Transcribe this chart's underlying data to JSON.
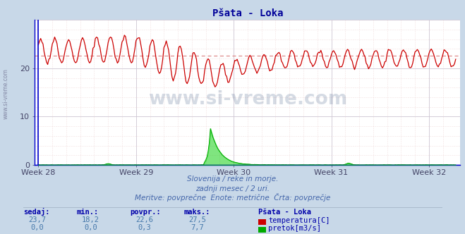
{
  "title": "Pšata - Loka",
  "title_color": "#000099",
  "bg_color": "#c8d8e8",
  "plot_bg_color": "#ffffff",
  "grid_color": "#c8c8d8",
  "grid_color2": "#e8c8c8",
  "temp_color": "#cc0000",
  "flow_color": "#00aa00",
  "flow_fill_color": "#00cc00",
  "avg_line_color": "#dd8888",
  "x_tick_labels": [
    "Week 28",
    "Week 29",
    "Week 30",
    "Week 31",
    "Week 32"
  ],
  "x_tick_positions": [
    0,
    84,
    168,
    252,
    336
  ],
  "ylim": [
    0,
    30
  ],
  "xlim": [
    -3,
    363
  ],
  "y_ticks": [
    0,
    10,
    20
  ],
  "subtitle1": "Slovenija / reke in morje.",
  "subtitle2": "zadnji mesec / 2 uri.",
  "subtitle3": "Meritve: povprečne  Enote: metrične  Črta: povprečje",
  "subtitle_color": "#4466aa",
  "table_header_color": "#0000aa",
  "table_value_color": "#4477aa",
  "table_headers": [
    "sedaj:",
    "min.:",
    "povpr.:",
    "maks.:"
  ],
  "table_temp": [
    "23,7",
    "18,2",
    "22,6",
    "27,5"
  ],
  "table_flow": [
    "0,0",
    "0,0",
    "0,3",
    "7,7"
  ],
  "station_name": "Pšata - Loka",
  "legend_temp": "temperatura[C]",
  "legend_flow": "pretok[m3/s]",
  "avg_temp": 22.6,
  "n_points": 360,
  "watermark": "www.si-vreme.com",
  "watermark_color": "#1a3a6a",
  "left_label": "www.si-vreme.com"
}
